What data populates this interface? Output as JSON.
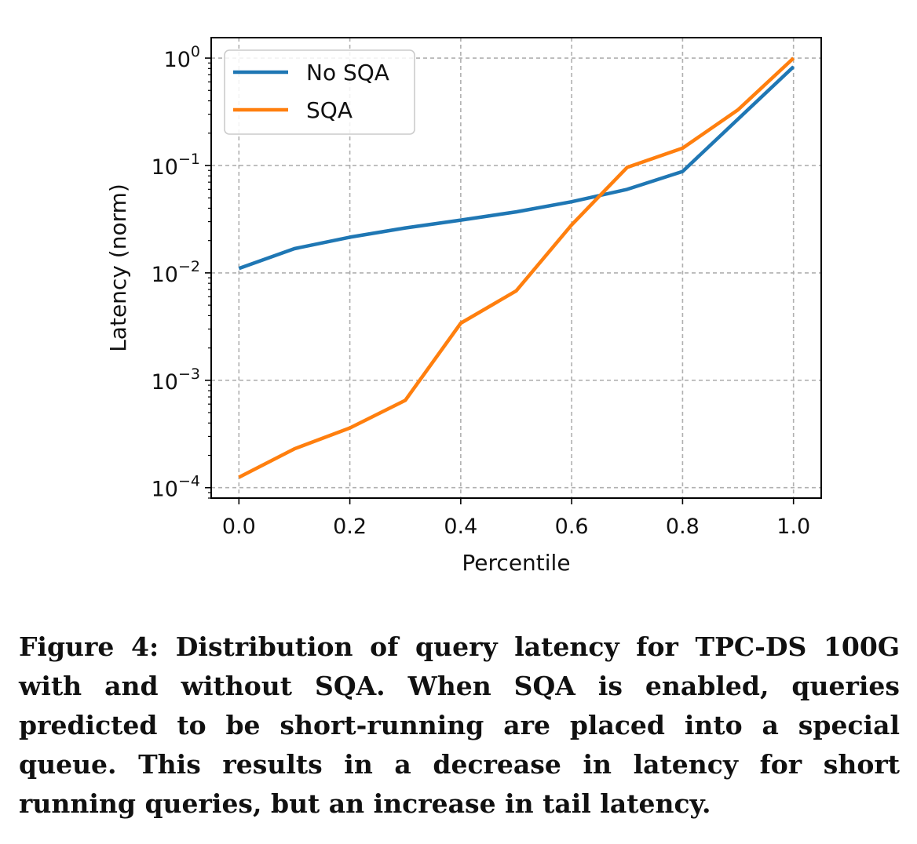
{
  "chart_data": {
    "type": "line",
    "xlabel": "Percentile",
    "ylabel": "Latency (norm)",
    "x": [
      0.0,
      0.1,
      0.2,
      0.3,
      0.4,
      0.5,
      0.6,
      0.7,
      0.8,
      0.9,
      1.0
    ],
    "xlim": [
      -0.05,
      1.05
    ],
    "ylim": [
      8e-05,
      1.55
    ],
    "yscale": "log",
    "x_ticks": [
      "0.0",
      "0.2",
      "0.4",
      "0.6",
      "0.8",
      "1.0"
    ],
    "x_tick_values": [
      0.0,
      0.2,
      0.4,
      0.6,
      0.8,
      1.0
    ],
    "y_ticks": [
      {
        "base": "10",
        "exp": "0"
      },
      {
        "base": "10",
        "exp": "−1"
      },
      {
        "base": "10",
        "exp": "−2"
      },
      {
        "base": "10",
        "exp": "−3"
      },
      {
        "base": "10",
        "exp": "−4"
      }
    ],
    "y_tick_values": [
      1,
      0.1,
      0.01,
      0.001,
      0.0001
    ],
    "grid": true,
    "legend_position": "top-left",
    "series": [
      {
        "name": "No SQA",
        "color": "#1f77b4",
        "values": [
          0.011,
          0.0168,
          0.0215,
          0.0262,
          0.031,
          0.037,
          0.046,
          0.06,
          0.088,
          0.27,
          0.83
        ]
      },
      {
        "name": "SQA",
        "color": "#ff7f0e",
        "values": [
          0.000125,
          0.00023,
          0.00036,
          0.00065,
          0.0034,
          0.0068,
          0.028,
          0.096,
          0.145,
          0.33,
          1.0
        ]
      }
    ]
  },
  "caption": "Figure 4: Distribution of query latency for TPC-DS 100G with and without SQA. When SQA is enabled, queries predicted to be short-running are placed into a special queue. This results in a decrease in latency for short running queries, but an increase in tail latency."
}
